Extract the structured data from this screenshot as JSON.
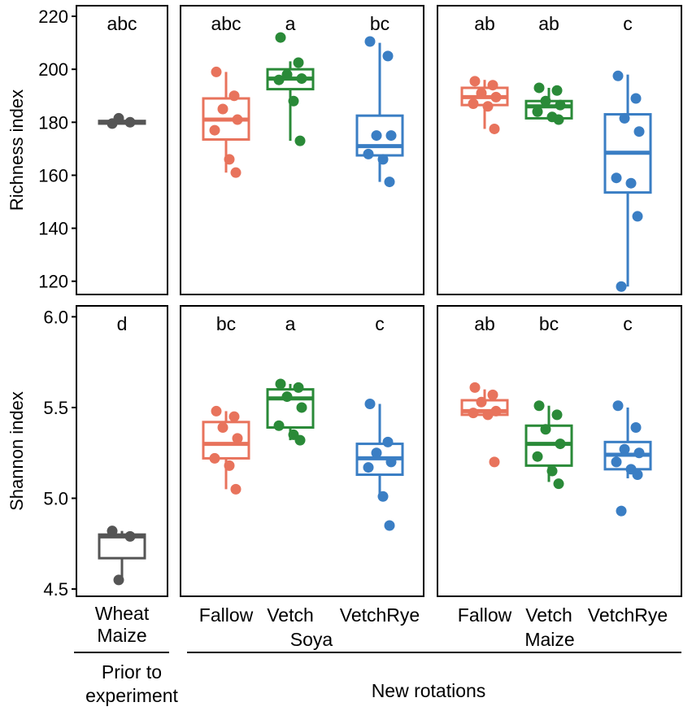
{
  "chart_data": {
    "type": "box",
    "colors": {
      "Fallow": "#e8735c",
      "Vetch": "#2a8a38",
      "VetchRye": "#3a7ec4",
      "WheatMaize": "#555555",
      "Soya": "#000000",
      "Maize": "#000000"
    },
    "columns": [
      {
        "id": "prior",
        "groups": [
          {
            "key": "WheatMaize",
            "label": "Wheat\nMaize"
          }
        ]
      },
      {
        "id": "soya",
        "label": "Soya",
        "groups": [
          {
            "key": "Fallow",
            "label": "Fallow"
          },
          {
            "key": "Vetch",
            "label": "Vetch"
          },
          {
            "key": "VetchRye",
            "label": "VetchRye"
          }
        ]
      },
      {
        "id": "maize",
        "label": "Maize",
        "groups": [
          {
            "key": "Fallow",
            "label": "Fallow"
          },
          {
            "key": "Vetch",
            "label": "Vetch"
          },
          {
            "key": "VetchRye",
            "label": "VetchRye"
          }
        ]
      }
    ],
    "bottom_labels": {
      "prior": "Prior to\nexperiment",
      "new": "New rotations"
    },
    "rows": [
      {
        "id": "richness",
        "ylabel": "Richness index",
        "ylim": [
          115,
          224
        ],
        "ticks": [
          120,
          140,
          160,
          180,
          200,
          220
        ],
        "tick_labels": [
          "120",
          "140",
          "160",
          "180",
          "200",
          "220"
        ],
        "panels": [
          {
            "boxes": [
              {
                "letter": "abc",
                "min": 179.5,
                "q1": 179.5,
                "median": 180,
                "q3": 180.5,
                "max": 181,
                "points": [
                  179.5,
                  180,
                  181.5
                ]
              }
            ]
          },
          {
            "boxes": [
              {
                "letter": "abc",
                "min": 161,
                "q1": 173.5,
                "median": 181,
                "q3": 189,
                "max": 199,
                "points": [
                  199,
                  190,
                  185,
                  181,
                  177,
                  166,
                  161
                ]
              },
              {
                "letter": "a",
                "min": 173,
                "q1": 192.5,
                "median": 196.5,
                "q3": 200,
                "max": 203,
                "points": [
                  212,
                  202.5,
                  198,
                  196.5,
                  196,
                  188,
                  173
                ]
              },
              {
                "letter": "bc",
                "min": 157.5,
                "q1": 167.5,
                "median": 171,
                "q3": 182.5,
                "max": 210,
                "points": [
                  210.5,
                  205,
                  175,
                  175,
                  168,
                  166,
                  157.5
                ]
              }
            ]
          },
          {
            "boxes": [
              {
                "letter": "ab",
                "min": 177.5,
                "q1": 186.5,
                "median": 189.5,
                "q3": 193,
                "max": 196,
                "points": [
                  195.5,
                  194,
                  191,
                  189.5,
                  187,
                  186,
                  177.5
                ]
              },
              {
                "letter": "ab",
                "min": 181,
                "q1": 181.5,
                "median": 186,
                "q3": 188,
                "max": 193,
                "points": [
                  193,
                  192,
                  188,
                  186.5,
                  184,
                  182,
                  181
                ]
              },
              {
                "letter": "c",
                "min": 118,
                "q1": 153.5,
                "median": 168.5,
                "q3": 183,
                "max": 198,
                "points": [
                  197.5,
                  189,
                  181.5,
                  176.5,
                  159,
                  157,
                  144.5,
                  118
                ]
              }
            ]
          }
        ]
      },
      {
        "id": "shannon",
        "ylabel": "Shannon index",
        "ylim": [
          4.46,
          6.06
        ],
        "ticks": [
          4.5,
          5.0,
          5.5,
          6.0
        ],
        "tick_labels": [
          "4.5",
          "5.0",
          "5.5",
          "6.0"
        ],
        "panels": [
          {
            "boxes": [
              {
                "letter": "d",
                "min": 4.55,
                "q1": 4.67,
                "median": 4.79,
                "q3": 4.8,
                "max": 4.82,
                "points": [
                  4.82,
                  4.79,
                  4.55
                ]
              }
            ]
          },
          {
            "boxes": [
              {
                "letter": "bc",
                "min": 5.05,
                "q1": 5.22,
                "median": 5.3,
                "q3": 5.42,
                "max": 5.48,
                "points": [
                  5.48,
                  5.45,
                  5.39,
                  5.33,
                  5.22,
                  5.18,
                  5.05
                ]
              },
              {
                "letter": "a",
                "min": 5.32,
                "q1": 5.39,
                "median": 5.55,
                "q3": 5.6,
                "max": 5.63,
                "points": [
                  5.63,
                  5.61,
                  5.56,
                  5.5,
                  5.4,
                  5.35,
                  5.32
                ]
              },
              {
                "letter": "c",
                "min": 5.01,
                "q1": 5.13,
                "median": 5.22,
                "q3": 5.3,
                "max": 5.52,
                "points": [
                  5.52,
                  5.31,
                  5.25,
                  5.2,
                  5.17,
                  5.01,
                  4.85
                ]
              }
            ]
          },
          {
            "boxes": [
              {
                "letter": "ab",
                "min": 5.46,
                "q1": 5.46,
                "median": 5.48,
                "q3": 5.54,
                "max": 5.6,
                "points": [
                  5.61,
                  5.57,
                  5.53,
                  5.48,
                  5.47,
                  5.46,
                  5.2
                ]
              },
              {
                "letter": "bc",
                "min": 5.09,
                "q1": 5.18,
                "median": 5.3,
                "q3": 5.4,
                "max": 5.51,
                "points": [
                  5.51,
                  5.46,
                  5.38,
                  5.3,
                  5.23,
                  5.15,
                  5.08
                ]
              },
              {
                "letter": "c",
                "min": 5.11,
                "q1": 5.16,
                "median": 5.24,
                "q3": 5.31,
                "max": 5.5,
                "points": [
                  5.51,
                  5.39,
                  5.27,
                  5.25,
                  5.2,
                  5.16,
                  5.13,
                  4.93
                ]
              }
            ]
          }
        ]
      }
    ]
  }
}
